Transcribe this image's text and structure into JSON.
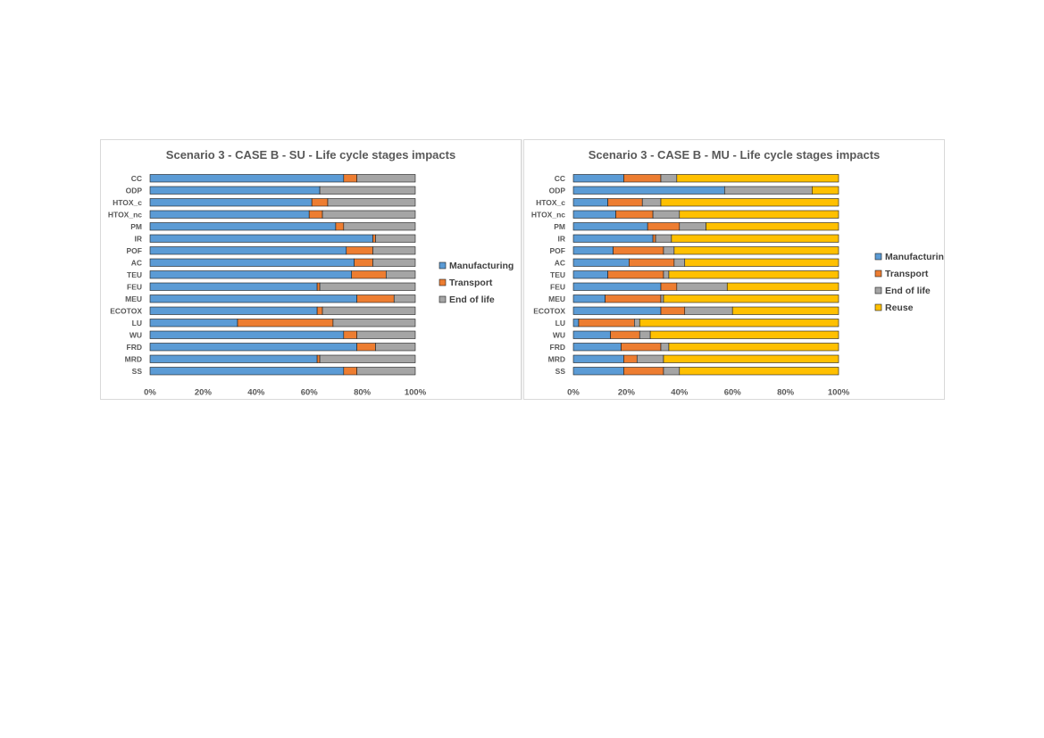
{
  "chart_data": [
    {
      "type": "bar",
      "orientation": "horizontal",
      "stacked": "percent",
      "title": "Scenario 3 - CASE B - SU - Life cycle stages impacts",
      "categories": [
        "CC",
        "ODP",
        "HTOX_c",
        "HTOX_nc",
        "PM",
        "IR",
        "POF",
        "AC",
        "TEU",
        "FEU",
        "MEU",
        "ECOTOX",
        "LU",
        "WU",
        "FRD",
        "MRD",
        "SS"
      ],
      "xticks": [
        "0%",
        "20%",
        "40%",
        "60%",
        "80%",
        "100%"
      ],
      "xlim": [
        0,
        100
      ],
      "legend_position": "right",
      "series": [
        {
          "name": "Manufacturing",
          "color": "#5B9BD5",
          "values": [
            73,
            64,
            61,
            60,
            70,
            84,
            74,
            77,
            76,
            63,
            78,
            63,
            33,
            73,
            78,
            63,
            73
          ]
        },
        {
          "name": "Transport",
          "color": "#ED7D31",
          "values": [
            5,
            0,
            6,
            5,
            3,
            1,
            10,
            7,
            13,
            1,
            14,
            2,
            36,
            5,
            7,
            1,
            5
          ]
        },
        {
          "name": "End of life",
          "color": "#A5A5A5",
          "values": [
            22,
            36,
            33,
            35,
            27,
            15,
            16,
            16,
            11,
            36,
            8,
            35,
            31,
            22,
            15,
            36,
            22
          ]
        }
      ]
    },
    {
      "type": "bar",
      "orientation": "horizontal",
      "stacked": "percent",
      "title": "Scenario 3 - CASE B - MU - Life cycle stages impacts",
      "categories": [
        "CC",
        "ODP",
        "HTOX_c",
        "HTOX_nc",
        "PM",
        "IR",
        "POF",
        "AC",
        "TEU",
        "FEU",
        "MEU",
        "ECOTOX",
        "LU",
        "WU",
        "FRD",
        "MRD",
        "SS"
      ],
      "xticks": [
        "0%",
        "20%",
        "40%",
        "60%",
        "80%",
        "100%"
      ],
      "xlim": [
        0,
        100
      ],
      "legend_position": "right",
      "series": [
        {
          "name": "Manufacturing",
          "color": "#5B9BD5",
          "values": [
            19,
            57,
            13,
            16,
            28,
            30,
            15,
            21,
            13,
            33,
            12,
            33,
            2,
            14,
            18,
            19,
            19
          ]
        },
        {
          "name": "Transport",
          "color": "#ED7D31",
          "values": [
            14,
            0,
            13,
            14,
            12,
            1,
            19,
            17,
            21,
            6,
            21,
            9,
            21,
            11,
            15,
            5,
            15
          ]
        },
        {
          "name": "End of life",
          "color": "#A5A5A5",
          "values": [
            6,
            33,
            7,
            10,
            10,
            6,
            4,
            4,
            2,
            19,
            1,
            18,
            2,
            4,
            3,
            10,
            6
          ]
        },
        {
          "name": "Reuse",
          "color": "#FFC000",
          "values": [
            61,
            10,
            67,
            60,
            50,
            63,
            62,
            58,
            64,
            42,
            66,
            40,
            75,
            71,
            64,
            66,
            60
          ]
        }
      ]
    }
  ]
}
